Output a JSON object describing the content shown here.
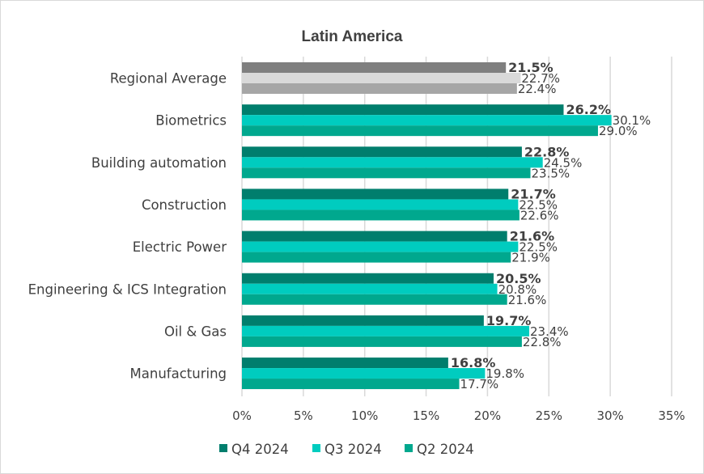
{
  "chart_data": {
    "type": "bar",
    "orientation": "horizontal",
    "title": "Latin America",
    "xlabel": "",
    "ylabel": "",
    "xlim": [
      0,
      35
    ],
    "x_ticks": [
      "0%",
      "5%",
      "10%",
      "15%",
      "20%",
      "25%",
      "30%",
      "35%"
    ],
    "x_tick_values": [
      0,
      5,
      10,
      15,
      20,
      25,
      30,
      35
    ],
    "grid": true,
    "legend_position": "bottom",
    "categories": [
      "Regional Average",
      "Biometrics",
      "Building automation",
      "Construction",
      "Electric Power",
      "Engineering & ICS Integration",
      "Oil & Gas",
      "Manufacturing"
    ],
    "series": [
      {
        "name": "Q4 2024",
        "color": "#007E6D",
        "average_color": "#7F7F7F",
        "label_bold": true,
        "values": [
          21.5,
          26.2,
          22.8,
          21.7,
          21.6,
          20.5,
          19.7,
          16.8
        ],
        "labels": [
          "21.5%",
          "26.2%",
          "22.8%",
          "21.7%",
          "21.6%",
          "20.5%",
          "19.7%",
          "16.8%"
        ]
      },
      {
        "name": "Q3 2024",
        "color": "#00CCBF",
        "average_color": "#D9D9D9",
        "label_bold": false,
        "values": [
          22.7,
          30.1,
          24.5,
          22.5,
          22.5,
          20.8,
          23.4,
          19.8
        ],
        "labels": [
          "22.7%",
          "30.1%",
          "24.5%",
          "22.5%",
          "22.5%",
          "20.8%",
          "23.4%",
          "19.8%"
        ]
      },
      {
        "name": "Q2 2024",
        "color": "#00A88E",
        "average_color": "#A6A6A6",
        "label_bold": false,
        "values": [
          22.4,
          29.0,
          23.5,
          22.6,
          21.9,
          21.6,
          22.8,
          17.7
        ],
        "labels": [
          "22.4%",
          "29.0%",
          "23.5%",
          "22.6%",
          "21.9%",
          "21.6%",
          "22.8%",
          "17.7%"
        ]
      }
    ]
  }
}
